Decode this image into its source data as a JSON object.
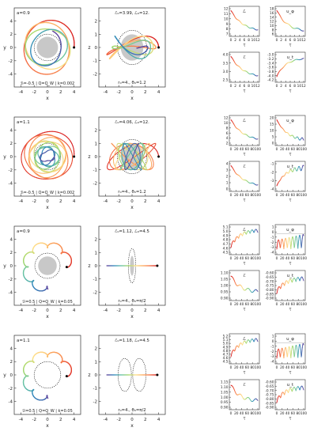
{
  "colors": {
    "rainbow": [
      "#d7191c",
      "#f46d43",
      "#fdae61",
      "#fee08b",
      "#a6d96a",
      "#66c2a5",
      "#3288bd",
      "#5e3c99"
    ],
    "frame": "#333333",
    "blackhole": "#c8c8c8"
  },
  "axis_labels": {
    "x": "x",
    "y": "y",
    "z": "z",
    "tau": "τ"
  },
  "rows": [
    {
      "left": {
        "tag": "a=0.9",
        "caption": "ℬ=-0.5 | Q=Q_W | k=0.002",
        "xticks": [
          "-4",
          "-2",
          "0",
          "2",
          "4"
        ],
        "yticks": [
          "4",
          "2",
          "0",
          "-2",
          "-4"
        ]
      },
      "mid": {
        "energy": "ℰ₀=3.99, ℒ₀=12.",
        "init": "r₀=4., θ₀=1.2",
        "xticks": [
          "-4",
          "-2",
          "0",
          "2",
          "4"
        ],
        "zticks": [
          "2",
          "1",
          "0",
          "-1",
          "-2"
        ]
      },
      "panels": [
        {
          "label": "ℒ",
          "yticks": [
            "12",
            "11",
            "10",
            "9",
            "8",
            "7"
          ],
          "xticks": [
            "0",
            "2",
            "4",
            "6",
            "8",
            "10",
            "12"
          ]
        },
        {
          "label": "u_φ",
          "yticks": [
            "18",
            "16",
            "14",
            "12",
            "10",
            "8",
            "6"
          ],
          "xticks": [
            "0",
            "2",
            "4",
            "6",
            "8",
            "10",
            "12"
          ]
        },
        {
          "label": "ℰ",
          "yticks": [
            "4.0",
            "3.5",
            "3.0",
            "2.5"
          ],
          "xticks": [
            "0",
            "2",
            "4",
            "6",
            "8",
            "10",
            "12"
          ]
        },
        {
          "label": "u_t",
          "yticks": [
            "-3.0",
            "-3.2",
            "-3.4",
            "-3.6",
            "-3.8",
            "-4.0",
            "-4.2"
          ],
          "xticks": [
            "0",
            "2",
            "4",
            "6",
            "8",
            "10",
            "12"
          ]
        }
      ]
    },
    {
      "left": {
        "tag": "a=1.1",
        "caption": "ℬ=-0.5 | Q=Q_W | k=0.002",
        "xticks": [
          "-4",
          "-2",
          "0",
          "2",
          "4"
        ],
        "yticks": [
          "4",
          "2",
          "0",
          "-2",
          "-4"
        ]
      },
      "mid": {
        "energy": "ℰ₀=4.06, ℒ₀=12.",
        "init": "r₀=4., θ₀=1.2",
        "xticks": [
          "-4",
          "-2",
          "0",
          "2",
          "4"
        ],
        "zticks": [
          "2",
          "1",
          "0",
          "-1",
          "-2"
        ]
      },
      "panels": [
        {
          "label": "ℒ",
          "yticks": [
            "12",
            "10",
            "8",
            "6",
            "4",
            "2"
          ],
          "xticks": [
            "0",
            "20",
            "40",
            "60",
            "80",
            "100"
          ]
        },
        {
          "label": "u_φ",
          "yticks": [
            "20",
            "15",
            "10",
            "5",
            "0"
          ],
          "xticks": [
            "0",
            "20",
            "40",
            "60",
            "80",
            "100"
          ]
        },
        {
          "label": "ℰ",
          "yticks": [
            "4",
            "3",
            "2",
            "1",
            "0"
          ],
          "xticks": [
            "0",
            "20",
            "40",
            "60",
            "80",
            "100"
          ]
        },
        {
          "label": "u_t",
          "yticks": [
            "-1",
            "-2",
            "-3",
            "-4"
          ],
          "xticks": [
            "0",
            "20",
            "40",
            "60",
            "80",
            "100"
          ]
        }
      ]
    },
    {
      "left": {
        "tag": "a=0.9",
        "caption": "ℬ=0.5 | Q=Q_W | k=0.05",
        "xticks": [
          "-4",
          "-2",
          "0",
          "2",
          "4"
        ],
        "yticks": [
          "4",
          "2",
          "0",
          "-2",
          "-4"
        ]
      },
      "mid": {
        "energy": "ℰ₀=1.12, ℒ₀=4.5",
        "init": "r₀=4., θ₀=π/2",
        "xticks": [
          "-4",
          "-2",
          "0",
          "2",
          "4"
        ],
        "zticks": [
          "2",
          "1",
          "0",
          "-1",
          "-2"
        ]
      },
      "panels": [
        {
          "label": "ℒ",
          "yticks": [
            "5.1",
            "5.0",
            "4.9",
            "4.8",
            "4.7",
            "4.6",
            "4.5"
          ],
          "xticks": [
            "0",
            "20",
            "40",
            "60",
            "80",
            "100"
          ]
        },
        {
          "label": "u_φ",
          "yticks": [
            "1",
            "0",
            "-1",
            "-2",
            "-3",
            "-4"
          ],
          "xticks": [
            "0",
            "20",
            "40",
            "60",
            "80",
            "100"
          ]
        },
        {
          "label": "ℰ",
          "yticks": [
            "1.10",
            "1.05",
            "1.00",
            "0.95",
            "0.90"
          ],
          "xticks": [
            "0",
            "20",
            "40",
            "60",
            "80",
            "100"
          ]
        },
        {
          "label": "u_t",
          "yticks": [
            "-0.60",
            "-0.65",
            "-0.70",
            "-0.75",
            "-0.80",
            "-0.85",
            "-0.90"
          ],
          "xticks": [
            "0",
            "20",
            "40",
            "60",
            "80",
            "100"
          ]
        }
      ]
    },
    {
      "left": {
        "tag": "a=1.1",
        "caption": "ℬ=0.5 | Q=Q_W | k=0.05",
        "xticks": [
          "-4",
          "-2",
          "0",
          "2",
          "4"
        ],
        "yticks": [
          "4",
          "2",
          "0",
          "-2",
          "-4"
        ]
      },
      "mid": {
        "energy": "ℰ₀=1.18, ℒ₀=4.5",
        "init": "r₀=4., θ₀=π/2",
        "xticks": [
          "-4",
          "-2",
          "0",
          "2",
          "4"
        ],
        "zticks": [
          "2",
          "1",
          "0",
          "-1",
          "-2"
        ]
      },
      "panels": [
        {
          "label": "ℒ",
          "yticks": [
            "5.2",
            "5.1",
            "5.0",
            "4.9",
            "4.8",
            "4.7",
            "4.6",
            "4.5"
          ],
          "xticks": [
            "0",
            "20",
            "40",
            "60",
            "80",
            "100"
          ]
        },
        {
          "label": "u_φ",
          "yticks": [
            "1",
            "0",
            "-1",
            "-2",
            "-3",
            "-4"
          ],
          "xticks": [
            "0",
            "20",
            "40",
            "60",
            "80",
            "100"
          ]
        },
        {
          "label": "ℰ",
          "yticks": [
            "1.15",
            "1.10",
            "1.05",
            "1.00",
            "0.95",
            "0.90"
          ],
          "xticks": [
            "0",
            "20",
            "40",
            "60",
            "80",
            "100"
          ]
        },
        {
          "label": "u_t",
          "yticks": [
            "-0.60",
            "-0.65",
            "-0.70",
            "-0.75",
            "-0.80",
            "-0.85",
            "-0.90"
          ],
          "xticks": [
            "0",
            "20",
            "40",
            "60",
            "80",
            "100"
          ]
        }
      ]
    }
  ]
}
